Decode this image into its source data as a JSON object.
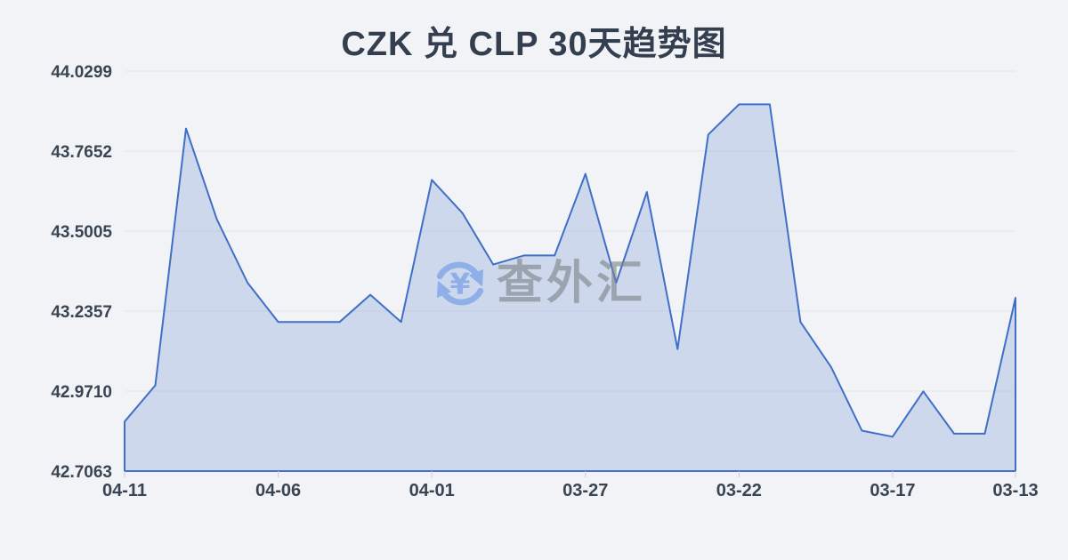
{
  "chart_data": {
    "type": "area",
    "title": "CZK 兑 CLP 30天趋势图",
    "x": [
      "04-11",
      "04-10",
      "04-09",
      "04-08",
      "04-07",
      "04-06",
      "04-05",
      "04-04",
      "04-03",
      "04-02",
      "04-01",
      "03-31",
      "03-30",
      "03-29",
      "03-28",
      "03-27",
      "03-26",
      "03-25",
      "03-24",
      "03-23",
      "03-22",
      "03-21",
      "03-20",
      "03-19",
      "03-18",
      "03-17",
      "03-16",
      "03-15",
      "03-14",
      "03-13"
    ],
    "values": [
      42.87,
      42.99,
      43.84,
      43.54,
      43.33,
      43.2,
      43.2,
      43.2,
      43.29,
      43.2,
      43.67,
      43.56,
      43.39,
      43.42,
      43.42,
      43.69,
      43.33,
      43.63,
      43.11,
      43.82,
      43.92,
      43.92,
      43.2,
      43.05,
      42.84,
      42.82,
      42.97,
      42.83,
      42.83,
      43.28
    ],
    "x_tick_labels": [
      "04-11",
      "04-06",
      "04-01",
      "03-27",
      "03-22",
      "03-17",
      "03-13"
    ],
    "y_tick_labels": [
      "44.0299",
      "43.7652",
      "43.5005",
      "43.2357",
      "42.9710",
      "42.7063"
    ],
    "ylim": [
      42.7063,
      44.0299
    ],
    "xlabel": "",
    "ylabel": "",
    "grid": true,
    "legend_position": "none"
  },
  "watermark": {
    "text": "查外汇",
    "currency_symbol": "¥"
  },
  "colors": {
    "background": "#f2f3f6",
    "title_text": "#333e4e",
    "axis_text": "#3a4553",
    "gridline": "#e2e5ea",
    "tick": "#c9cdd4",
    "line": "#3f6fc6",
    "area_fill": "rgba(63,111,198,0.20)",
    "watermark_blue": "#8fafe8",
    "watermark_gray": "rgba(125,130,137,0.62)"
  }
}
